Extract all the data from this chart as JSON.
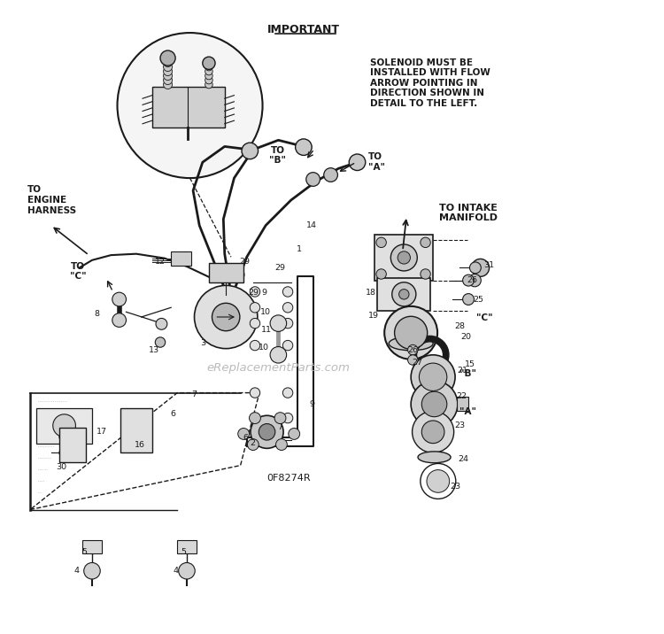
{
  "bg_color": "#ffffff",
  "line_color": "#1a1a1a",
  "title": "IMPORTANT",
  "important_note": "SOLENOID MUST BE\nINSTALLED WITH FLOW\nARROW POINTING IN\nDIRECTION SHOWN IN\nDETAIL TO THE LEFT.",
  "part_label": "0F8274R",
  "watermark": "eReplacementParts.com"
}
